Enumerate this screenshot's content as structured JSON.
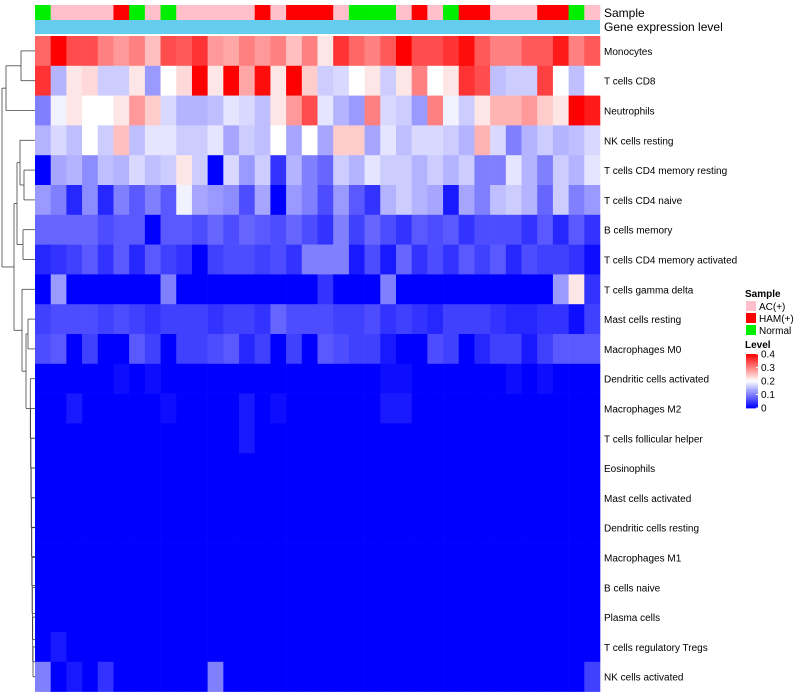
{
  "chart_data": {
    "type": "heatmap",
    "title": "",
    "annotation_tracks": [
      {
        "name": "Sample",
        "values": [
          "Normal",
          "AC(+)",
          "AC(+)",
          "AC(+)",
          "AC(+)",
          "HAM(+)",
          "Normal",
          "AC(+)",
          "Normal",
          "AC(+)",
          "AC(+)",
          "AC(+)",
          "AC(+)",
          "AC(+)",
          "HAM(+)",
          "AC(+)",
          "HAM(+)",
          "HAM(+)",
          "HAM(+)",
          "AC(+)",
          "Normal",
          "Normal",
          "Normal",
          "AC(+)",
          "HAM(+)",
          "AC(+)",
          "Normal",
          "HAM(+)",
          "HAM(+)",
          "AC(+)",
          "AC(+)",
          "AC(+)",
          "HAM(+)",
          "HAM(+)",
          "Normal",
          "AC(+)"
        ]
      },
      {
        "name": "Gene expression level",
        "values": []
      }
    ],
    "rows": [
      "Monocytes",
      "T cells CD8",
      "Neutrophils",
      "NK cells resting",
      "T cells CD4 memory resting",
      "T cells CD4 naive",
      "B cells memory",
      "T cells CD4 memory activated",
      "T cells gamma delta",
      "Mast cells resting",
      "Macrophages M0",
      "Dendritic cells activated",
      "Macrophages M2",
      "T cells follicular helper",
      "Eosinophils",
      "Mast cells activated",
      "Dendritic cells resting",
      "Macrophages M1",
      "B cells naive",
      "Plasma cells",
      "T cells regulatory  Tregs",
      "NK cells activated"
    ],
    "columns": 36,
    "values": [
      [
        0.32,
        0.4,
        0.34,
        0.34,
        0.3,
        0.28,
        0.3,
        0.25,
        0.34,
        0.33,
        0.36,
        0.28,
        0.27,
        0.3,
        0.28,
        0.3,
        0.25,
        0.3,
        0.22,
        0.36,
        0.32,
        0.3,
        0.33,
        0.4,
        0.34,
        0.34,
        0.36,
        0.39,
        0.33,
        0.3,
        0.3,
        0.33,
        0.33,
        0.38,
        0.3,
        0.33
      ],
      [
        0.36,
        0.14,
        0.22,
        0.23,
        0.16,
        0.16,
        0.22,
        0.12,
        0.2,
        0.23,
        0.4,
        0.22,
        0.4,
        0.27,
        0.39,
        0.22,
        0.4,
        0.24,
        0.16,
        0.17,
        0.2,
        0.22,
        0.16,
        0.22,
        0.3,
        0.2,
        0.22,
        0.36,
        0.34,
        0.15,
        0.16,
        0.16,
        0.35,
        0.2,
        0.15,
        0.2
      ],
      [
        0.1,
        0.19,
        0.22,
        0.2,
        0.2,
        0.22,
        0.28,
        0.24,
        0.17,
        0.14,
        0.14,
        0.15,
        0.18,
        0.17,
        0.15,
        0.22,
        0.28,
        0.34,
        0.18,
        0.14,
        0.12,
        0.3,
        0.17,
        0.16,
        0.12,
        0.3,
        0.19,
        0.16,
        0.22,
        0.26,
        0.26,
        0.28,
        0.24,
        0.22,
        0.42,
        0.38
      ],
      [
        0.14,
        0.17,
        0.15,
        0.2,
        0.16,
        0.25,
        0.15,
        0.18,
        0.18,
        0.16,
        0.16,
        0.18,
        0.13,
        0.16,
        0.15,
        0.2,
        0.13,
        0.2,
        0.13,
        0.24,
        0.24,
        0.13,
        0.18,
        0.15,
        0.17,
        0.17,
        0.16,
        0.14,
        0.26,
        0.17,
        0.1,
        0.14,
        0.16,
        0.14,
        0.15,
        0.17
      ],
      [
        0.0,
        0.13,
        0.14,
        0.11,
        0.15,
        0.14,
        0.17,
        0.15,
        0.16,
        0.22,
        0.16,
        0.0,
        0.17,
        0.12,
        0.16,
        0.04,
        0.14,
        0.1,
        0.08,
        0.16,
        0.14,
        0.18,
        0.16,
        0.16,
        0.14,
        0.16,
        0.14,
        0.16,
        0.1,
        0.1,
        0.18,
        0.14,
        0.1,
        0.16,
        0.14,
        0.18
      ],
      [
        0.12,
        0.1,
        0.03,
        0.11,
        0.03,
        0.1,
        0.07,
        0.1,
        0.07,
        0.19,
        0.13,
        0.12,
        0.11,
        0.06,
        0.13,
        0.0,
        0.12,
        0.1,
        0.06,
        0.12,
        0.07,
        0.04,
        0.14,
        0.16,
        0.14,
        0.13,
        0.02,
        0.13,
        0.1,
        0.15,
        0.16,
        0.14,
        0.08,
        0.16,
        0.1,
        0.12
      ],
      [
        0.08,
        0.08,
        0.08,
        0.08,
        0.06,
        0.07,
        0.07,
        0.0,
        0.07,
        0.07,
        0.06,
        0.08,
        0.06,
        0.08,
        0.07,
        0.06,
        0.08,
        0.06,
        0.04,
        0.1,
        0.05,
        0.08,
        0.06,
        0.04,
        0.07,
        0.06,
        0.07,
        0.04,
        0.06,
        0.06,
        0.06,
        0.04,
        0.07,
        0.03,
        0.07,
        0.04
      ],
      [
        0.03,
        0.04,
        0.05,
        0.07,
        0.04,
        0.07,
        0.03,
        0.07,
        0.05,
        0.04,
        0.0,
        0.05,
        0.06,
        0.06,
        0.05,
        0.06,
        0.04,
        0.1,
        0.1,
        0.1,
        0.02,
        0.06,
        0.02,
        0.08,
        0.04,
        0.06,
        0.04,
        0.07,
        0.05,
        0.07,
        0.03,
        0.06,
        0.05,
        0.05,
        0.04,
        0.01
      ],
      [
        0.0,
        0.12,
        0.0,
        0.0,
        0.0,
        0.0,
        0.0,
        0.0,
        0.1,
        0.0,
        0.0,
        0.0,
        0.0,
        0.0,
        0.0,
        0.0,
        0.0,
        0.0,
        0.04,
        0.0,
        0.0,
        0.0,
        0.1,
        0.0,
        0.0,
        0.0,
        0.0,
        0.0,
        0.0,
        0.0,
        0.0,
        0.0,
        0.0,
        0.12,
        0.22,
        0.04
      ],
      [
        0.05,
        0.06,
        0.06,
        0.06,
        0.05,
        0.06,
        0.05,
        0.04,
        0.05,
        0.05,
        0.05,
        0.04,
        0.05,
        0.05,
        0.04,
        0.08,
        0.06,
        0.06,
        0.06,
        0.05,
        0.05,
        0.06,
        0.04,
        0.05,
        0.04,
        0.03,
        0.05,
        0.05,
        0.05,
        0.04,
        0.03,
        0.03,
        0.04,
        0.04,
        0.01,
        0.05
      ],
      [
        0.06,
        0.07,
        0.0,
        0.05,
        0.0,
        0.0,
        0.07,
        0.05,
        0.0,
        0.05,
        0.05,
        0.06,
        0.07,
        0.03,
        0.05,
        0.0,
        0.05,
        0.0,
        0.07,
        0.06,
        0.05,
        0.05,
        0.02,
        0.0,
        0.0,
        0.06,
        0.05,
        0.0,
        0.03,
        0.05,
        0.05,
        0.02,
        0.05,
        0.07,
        0.07,
        0.07
      ],
      [
        0.0,
        0.0,
        0.0,
        0.0,
        0.0,
        0.01,
        0.0,
        0.01,
        0.0,
        0.0,
        0.0,
        0.0,
        0.0,
        0.0,
        0.0,
        0.0,
        0.0,
        0.0,
        0.0,
        0.0,
        0.0,
        0.0,
        0.01,
        0.01,
        0.0,
        0.0,
        0.0,
        0.0,
        0.0,
        0.0,
        0.01,
        0.0,
        0.01,
        0.0,
        0.0,
        0.0
      ],
      [
        0.0,
        0.0,
        0.02,
        0.0,
        0.0,
        0.0,
        0.0,
        0.0,
        0.01,
        0.0,
        0.0,
        0.0,
        0.0,
        0.02,
        0.0,
        0.01,
        0.0,
        0.0,
        0.0,
        0.0,
        0.0,
        0.0,
        0.02,
        0.02,
        0.0,
        0.0,
        0.0,
        0.0,
        0.0,
        0.0,
        0.0,
        0.0,
        0.0,
        0.0,
        0.0,
        0.0
      ],
      [
        0.0,
        0.0,
        0.0,
        0.0,
        0.0,
        0.0,
        0.0,
        0.0,
        0.0,
        0.0,
        0.0,
        0.0,
        0.0,
        0.02,
        0.0,
        0.0,
        0.0,
        0.0,
        0.0,
        0.0,
        0.0,
        0.0,
        0.0,
        0.0,
        0.0,
        0.0,
        0.0,
        0.0,
        0.0,
        0.0,
        0.0,
        0.0,
        0.0,
        0.0,
        0.0,
        0.0
      ],
      [
        0.0,
        0.0,
        0.0,
        0.0,
        0.0,
        0.0,
        0.0,
        0.0,
        0.0,
        0.0,
        0.0,
        0.0,
        0.0,
        0.0,
        0.0,
        0.0,
        0.0,
        0.0,
        0.0,
        0.0,
        0.0,
        0.0,
        0.0,
        0.0,
        0.0,
        0.0,
        0.0,
        0.0,
        0.0,
        0.0,
        0.0,
        0.0,
        0.0,
        0.0,
        0.0,
        0.0
      ],
      [
        0.0,
        0.0,
        0.0,
        0.0,
        0.0,
        0.0,
        0.0,
        0.0,
        0.0,
        0.0,
        0.0,
        0.0,
        0.0,
        0.0,
        0.0,
        0.0,
        0.0,
        0.0,
        0.0,
        0.0,
        0.0,
        0.0,
        0.0,
        0.0,
        0.0,
        0.0,
        0.0,
        0.0,
        0.0,
        0.0,
        0.0,
        0.0,
        0.0,
        0.0,
        0.0,
        0.0
      ],
      [
        0.0,
        0.0,
        0.0,
        0.0,
        0.0,
        0.0,
        0.0,
        0.0,
        0.0,
        0.0,
        0.0,
        0.0,
        0.0,
        0.0,
        0.0,
        0.0,
        0.0,
        0.0,
        0.0,
        0.0,
        0.0,
        0.0,
        0.0,
        0.0,
        0.0,
        0.0,
        0.0,
        0.0,
        0.0,
        0.0,
        0.0,
        0.0,
        0.0,
        0.0,
        0.0,
        0.0
      ],
      [
        0.0,
        0.0,
        0.0,
        0.0,
        0.0,
        0.0,
        0.0,
        0.0,
        0.0,
        0.0,
        0.0,
        0.0,
        0.0,
        0.0,
        0.0,
        0.0,
        0.0,
        0.0,
        0.0,
        0.0,
        0.0,
        0.0,
        0.0,
        0.0,
        0.0,
        0.0,
        0.0,
        0.0,
        0.0,
        0.0,
        0.0,
        0.0,
        0.0,
        0.0,
        0.0,
        0.0
      ],
      [
        0.0,
        0.0,
        0.0,
        0.0,
        0.0,
        0.0,
        0.0,
        0.0,
        0.0,
        0.0,
        0.0,
        0.0,
        0.0,
        0.0,
        0.0,
        0.0,
        0.0,
        0.0,
        0.0,
        0.0,
        0.0,
        0.0,
        0.0,
        0.0,
        0.0,
        0.0,
        0.0,
        0.0,
        0.0,
        0.0,
        0.0,
        0.0,
        0.0,
        0.0,
        0.0,
        0.0
      ],
      [
        0.0,
        0.0,
        0.0,
        0.0,
        0.0,
        0.0,
        0.0,
        0.0,
        0.0,
        0.0,
        0.0,
        0.0,
        0.0,
        0.0,
        0.0,
        0.0,
        0.0,
        0.0,
        0.0,
        0.0,
        0.0,
        0.0,
        0.0,
        0.0,
        0.0,
        0.0,
        0.0,
        0.0,
        0.0,
        0.0,
        0.0,
        0.0,
        0.0,
        0.0,
        0.0,
        0.0
      ],
      [
        0.0,
        0.02,
        0.0,
        0.0,
        0.0,
        0.0,
        0.0,
        0.0,
        0.0,
        0.0,
        0.0,
        0.0,
        0.0,
        0.0,
        0.0,
        0.0,
        0.0,
        0.0,
        0.0,
        0.0,
        0.0,
        0.0,
        0.0,
        0.0,
        0.0,
        0.0,
        0.0,
        0.0,
        0.0,
        0.0,
        0.0,
        0.0,
        0.0,
        0.0,
        0.0,
        0.0
      ],
      [
        0.1,
        0.0,
        0.02,
        0.0,
        0.04,
        0.0,
        0.0,
        0.0,
        0.0,
        0.0,
        0.0,
        0.1,
        0.0,
        0.0,
        0.0,
        0.0,
        0.0,
        0.0,
        0.0,
        0.0,
        0.0,
        0.0,
        0.0,
        0.0,
        0.0,
        0.0,
        0.0,
        0.0,
        0.0,
        0.0,
        0.0,
        0.0,
        0.0,
        0.0,
        0.0,
        0.05
      ]
    ],
    "color_scale": {
      "min": 0,
      "max": 0.4,
      "colors": [
        "#0000ff",
        "#ffffff",
        "#ff0000"
      ],
      "midpoint": 0.2
    },
    "legend": {
      "sample_title": "Sample",
      "sample_entries": [
        {
          "label": "AC(+)",
          "color": "#ffc0cb"
        },
        {
          "label": "HAM(+)",
          "color": "#ff0000"
        },
        {
          "label": "Normal",
          "color": "#00ee00"
        }
      ],
      "level_title": "Level",
      "level_ticks": [
        0.4,
        0.3,
        0.2,
        0.1,
        0
      ],
      "position": "right"
    },
    "expression_track_color": "#66ccee",
    "dendrogram": "rows"
  }
}
